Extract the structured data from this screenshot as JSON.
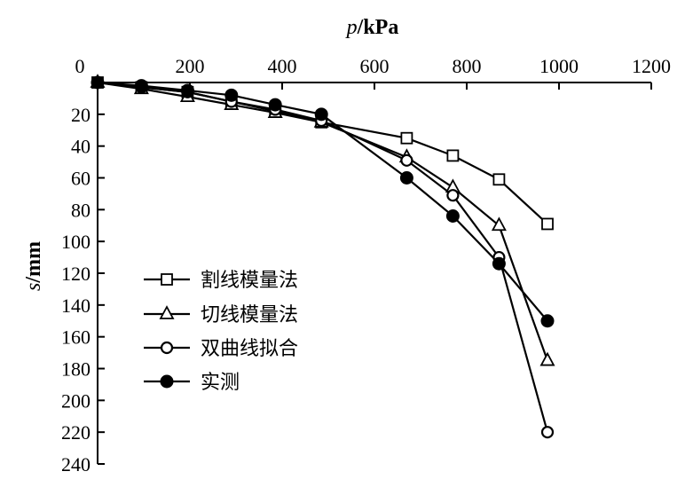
{
  "chart_data": {
    "type": "line",
    "xlabel_var": "p",
    "xlabel_unit": "/kPa",
    "ylabel_var": "s",
    "ylabel_unit": "/mm",
    "xlim": [
      0,
      1200
    ],
    "ylim": [
      0,
      240
    ],
    "x_ticks": [
      "0",
      "200",
      "400",
      "600",
      "800",
      "1000",
      "1200"
    ],
    "x_tick_values": [
      0,
      200,
      400,
      600,
      800,
      1000,
      1200
    ],
    "y_ticks": [
      "20",
      "40",
      "60",
      "80",
      "100",
      "120",
      "140",
      "160",
      "180",
      "200",
      "220",
      "240"
    ],
    "y_tick_values": [
      20,
      40,
      60,
      80,
      100,
      120,
      140,
      160,
      180,
      200,
      220,
      240
    ],
    "x_axis_position": "top",
    "y_axis_inverted": true,
    "legend_position": "bottom-left",
    "x": [
      0,
      95,
      195,
      290,
      385,
      485,
      670,
      770,
      870,
      975
    ],
    "series": [
      {
        "name": "割线模量法",
        "marker": "square",
        "values": [
          0,
          3,
          6,
          12,
          18,
          25,
          35,
          46,
          61,
          89
        ]
      },
      {
        "name": "切线模量法",
        "marker": "triangle",
        "values": [
          0,
          4,
          9,
          14,
          19,
          25,
          47,
          66,
          90,
          175
        ]
      },
      {
        "name": "双曲线拟合",
        "marker": "circle",
        "values": [
          0,
          3,
          6,
          12,
          17,
          24,
          49,
          71,
          110,
          220
        ]
      },
      {
        "name": "实测",
        "marker": "filled-circle",
        "values": [
          0,
          2,
          5,
          8,
          14,
          20,
          60,
          84,
          114,
          150
        ]
      }
    ]
  }
}
